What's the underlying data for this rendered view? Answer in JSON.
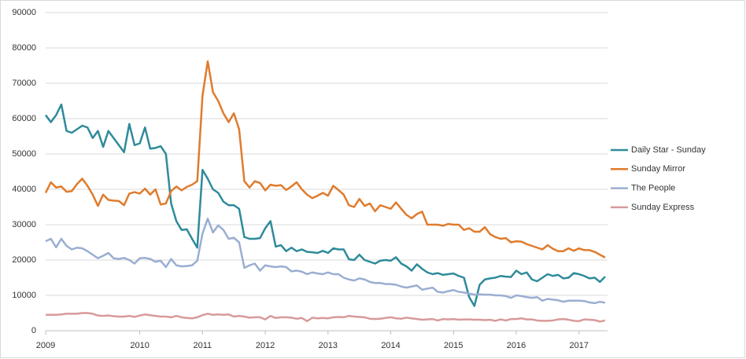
{
  "chart_data": {
    "type": "line",
    "categories": [
      "2009",
      null,
      null,
      null,
      null,
      null,
      null,
      null,
      null,
      null,
      null,
      null,
      null,
      null,
      null,
      null,
      null,
      null,
      "2010",
      null,
      null,
      null,
      null,
      null,
      null,
      null,
      null,
      null,
      null,
      null,
      "2011",
      null,
      null,
      null,
      null,
      null,
      null,
      null,
      null,
      null,
      null,
      null,
      "2012",
      null,
      null,
      null,
      null,
      null,
      null,
      null,
      null,
      null,
      null,
      null,
      "2013",
      null,
      null,
      null,
      null,
      null,
      null,
      null,
      null,
      null,
      null,
      null,
      "2014",
      null,
      null,
      null,
      null,
      null,
      null,
      null,
      null,
      null,
      null,
      null,
      "2015",
      null,
      null,
      null,
      null,
      null,
      null,
      null,
      null,
      null,
      null,
      null,
      "2016",
      null,
      null,
      null,
      null,
      null,
      null,
      null,
      null,
      null,
      null,
      null,
      "2017",
      null,
      null,
      null,
      null,
      null
    ],
    "series": [
      {
        "name": "Daily Star - Sunday",
        "color": "#2e8b9a",
        "values": [
          61000,
          59000,
          61000,
          64000,
          56500,
          56000,
          57000,
          58000,
          57500,
          54500,
          56500,
          52000,
          56500,
          54500,
          52500,
          50500,
          58500,
          52500,
          53000,
          57500,
          51500,
          51700,
          52200,
          50000,
          36000,
          31000,
          28500,
          28700,
          26000,
          23500,
          45500,
          43000,
          40000,
          39000,
          36500,
          35500,
          35500,
          34500,
          26500,
          26000,
          26000,
          26200,
          29000,
          31000,
          23800,
          24200,
          22500,
          23500,
          22500,
          23000,
          22300,
          22200,
          22000,
          22600,
          22000,
          23300,
          23000,
          23000,
          20200,
          20000,
          21500,
          20000,
          19500,
          19000,
          19800,
          20000,
          19800,
          20800,
          19000,
          18200,
          17000,
          18800,
          17500,
          16500,
          16000,
          16300,
          15800,
          16000,
          16200,
          15500,
          15000,
          9500,
          7000,
          13000,
          14500,
          14800,
          15000,
          15500,
          15300,
          15200,
          17000,
          16000,
          16500,
          14500,
          14000,
          15000,
          16000,
          15500,
          15800,
          14800,
          15000,
          16300,
          16000,
          15500,
          14800,
          15000,
          13800,
          15300
        ]
      },
      {
        "name": "Sunday Mirror",
        "color": "#e07b2c",
        "values": [
          39000,
          42000,
          40500,
          40800,
          39300,
          39500,
          41500,
          43000,
          41000,
          38500,
          35300,
          38500,
          37000,
          36800,
          36700,
          35500,
          38800,
          39200,
          38800,
          40200,
          38500,
          40000,
          35700,
          36000,
          39500,
          40800,
          39700,
          40700,
          41300,
          42300,
          66500,
          76200,
          67500,
          65000,
          61500,
          59000,
          61500,
          57000,
          42300,
          40500,
          42300,
          41800,
          39700,
          41300,
          41000,
          41200,
          39800,
          40800,
          42000,
          40000,
          38500,
          37500,
          38200,
          39000,
          38200,
          41000,
          39800,
          38500,
          35500,
          35000,
          37300,
          35300,
          36000,
          33800,
          35500,
          35000,
          34500,
          36300,
          34500,
          32800,
          31800,
          33000,
          33700,
          30000,
          30000,
          30000,
          29700,
          30200,
          30000,
          30000,
          28500,
          29000,
          28000,
          28000,
          29300,
          27300,
          26500,
          26000,
          26200,
          25000,
          25300,
          25200,
          24500,
          24000,
          23500,
          23000,
          24200,
          23200,
          22500,
          22500,
          23300,
          22600,
          23300,
          22800,
          22800,
          22300,
          21500,
          20700
        ]
      },
      {
        "name": "The People",
        "color": "#9aaed1",
        "values": [
          25300,
          26000,
          23600,
          26000,
          24000,
          23000,
          23500,
          23300,
          22500,
          21500,
          20500,
          21200,
          22000,
          20500,
          20300,
          20600,
          20000,
          19000,
          20500,
          20600,
          20300,
          19500,
          19800,
          18000,
          20300,
          18500,
          18200,
          18300,
          18500,
          19800,
          27500,
          31700,
          27800,
          29800,
          28500,
          26000,
          26300,
          25000,
          17800,
          18500,
          19000,
          17000,
          18500,
          18200,
          18000,
          18200,
          18000,
          16800,
          17000,
          16700,
          16000,
          16500,
          16200,
          16000,
          16500,
          16000,
          16000,
          15000,
          14500,
          14200,
          14800,
          14500,
          13800,
          13500,
          13500,
          13200,
          13200,
          13000,
          12500,
          12200,
          12500,
          12800,
          11600,
          11900,
          12200,
          11000,
          10800,
          11200,
          11500,
          11000,
          10800,
          10500,
          10200,
          10300,
          10200,
          10200,
          10000,
          10000,
          9800,
          9300,
          10000,
          9800,
          9500,
          9300,
          9500,
          8500,
          9000,
          8800,
          8600,
          8200,
          8500,
          8500,
          8500,
          8400,
          8000,
          7800,
          8200,
          7900
        ]
      },
      {
        "name": "Sunday Express",
        "color": "#d89a9a",
        "values": [
          4500,
          4500,
          4500,
          4600,
          4800,
          4800,
          4800,
          5000,
          5000,
          4800,
          4300,
          4200,
          4300,
          4100,
          4000,
          4000,
          4200,
          3900,
          4300,
          4600,
          4400,
          4200,
          4000,
          4000,
          3800,
          4200,
          3800,
          3600,
          3500,
          3800,
          4400,
          4800,
          4500,
          4600,
          4500,
          4600,
          4000,
          4200,
          4000,
          3700,
          3800,
          3800,
          3200,
          4200,
          3600,
          3800,
          3800,
          3700,
          3400,
          3600,
          2700,
          3700,
          3500,
          3600,
          3500,
          3800,
          3900,
          3800,
          4200,
          4000,
          3900,
          3800,
          3400,
          3300,
          3400,
          3600,
          3800,
          3500,
          3400,
          3700,
          3500,
          3300,
          3100,
          3200,
          3300,
          2900,
          3300,
          3200,
          3300,
          3100,
          3200,
          3200,
          3100,
          3100,
          3000,
          3100,
          2800,
          3200,
          2900,
          3300,
          3300,
          3500,
          3200,
          3200,
          2900,
          2800,
          2800,
          2900,
          3200,
          3300,
          3100,
          2800,
          2700,
          3200,
          3100,
          3000,
          2600,
          2900
        ]
      }
    ],
    "ylim": [
      0,
      90000
    ],
    "yticks": [
      0,
      10000,
      20000,
      30000,
      40000,
      50000,
      60000,
      70000,
      80000,
      90000
    ],
    "grid": true,
    "legend": "right"
  }
}
